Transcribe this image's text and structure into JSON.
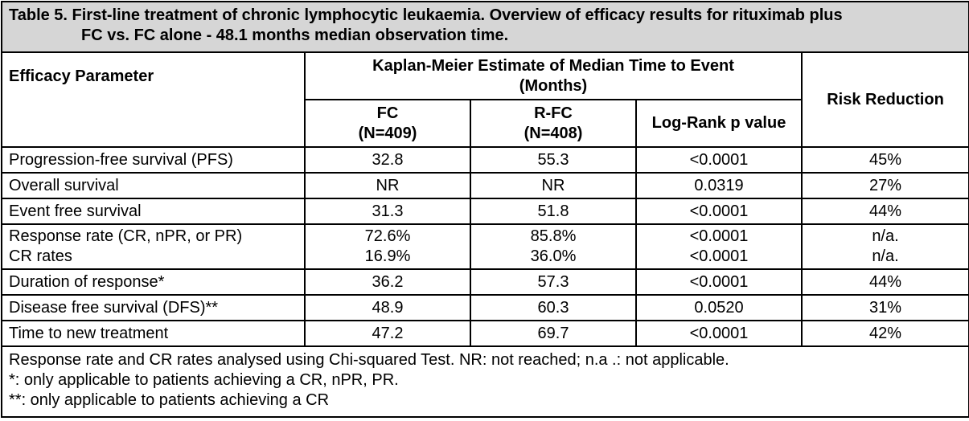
{
  "caption": {
    "line1": "Table 5. First-line treatment of chronic lymphocytic leukaemia. Overview of efficacy results for rituximab plus",
    "line2": "FC vs. FC alone - 48.1 months median observation time."
  },
  "headers": {
    "efficacy_parameter": "Efficacy Parameter",
    "km_line1": "Kaplan-Meier Estimate of Median Time to Event",
    "km_line2": "(Months)",
    "risk_reduction": "Risk Reduction",
    "fc_name": "FC",
    "fc_n": "(N=409)",
    "rfc_name": "R-FC",
    "rfc_n": "(N=408)",
    "logrank": "Log-Rank p value"
  },
  "rows": [
    {
      "param": "Progression-free survival (PFS)",
      "fc": "32.8",
      "rfc": "55.3",
      "p": "<0.0001",
      "rr": "45%"
    },
    {
      "param": "Overall survival",
      "fc": "NR",
      "rfc": "NR",
      "p": "0.0319",
      "rr": "27%"
    },
    {
      "param": "Event free survival",
      "fc": "31.3",
      "rfc": "51.8",
      "p": "<0.0001",
      "rr": "44%"
    },
    {
      "param": "Response rate (CR, nPR, or PR)",
      "param2": "CR rates",
      "fc": "72.6%",
      "fc2": "16.9%",
      "rfc": "85.8%",
      "rfc2": "36.0%",
      "p": "<0.0001",
      "p2": "<0.0001",
      "rr": "n/a.",
      "rr2": "n/a."
    },
    {
      "param": "Duration of response*",
      "fc": "36.2",
      "rfc": "57.3",
      "p": "<0.0001",
      "rr": "44%"
    },
    {
      "param": "Disease free survival (DFS)**",
      "fc": "48.9",
      "rfc": "60.3",
      "p": "0.0520",
      "rr": "31%"
    },
    {
      "param": "Time to new treatment",
      "fc": "47.2",
      "rfc": "69.7",
      "p": "<0.0001",
      "rr": "42%"
    }
  ],
  "footnotes": [
    "Response rate and CR rates analysed using Chi-squared Test. NR: not reached; n.a .: not applicable.",
    "*: only applicable to patients achieving a CR, nPR, PR.",
    "**: only applicable to patients achieving a CR"
  ]
}
